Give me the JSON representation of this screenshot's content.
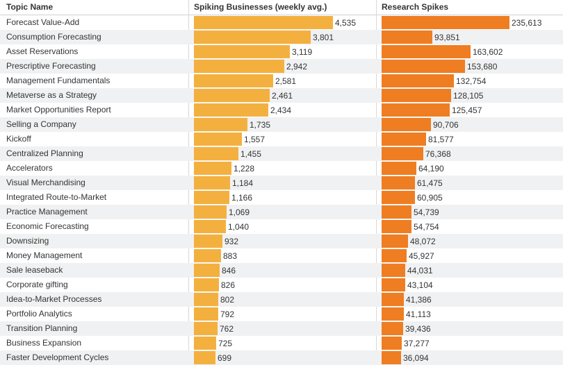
{
  "colors": {
    "businesses_bar": "#f4b03f",
    "research_bar": "#ef7d22",
    "alt_row": "#f0f1f2"
  },
  "header": {
    "topic": "Topic Name",
    "businesses": "Spiking Businesses (weekly avg.)",
    "research": "Research Spikes"
  },
  "chart_data": {
    "type": "bar",
    "title": "",
    "categories": [
      "Forecast Value-Add",
      "Consumption Forecasting",
      "Asset Reservations",
      "Prescriptive Forecasting",
      "Management Fundamentals",
      "Metaverse as a Strategy",
      "Market Opportunities Report",
      "Selling a Company",
      "Kickoff",
      "Centralized Planning",
      "Accelerators",
      "Visual Merchandising",
      "Integrated Route-to-Market",
      "Practice Management",
      "Economic Forecasting",
      "Downsizing",
      "Money Management",
      "Sale leaseback",
      "Corporate gifting",
      "Idea-to-Market Processes",
      "Portfolio Analytics",
      "Transition Planning",
      "Business Expansion",
      "Faster Development Cycles"
    ],
    "series": [
      {
        "name": "Spiking Businesses (weekly avg.)",
        "values": [
          4535,
          3801,
          3119,
          2942,
          2581,
          2461,
          2434,
          1735,
          1557,
          1455,
          1228,
          1184,
          1166,
          1069,
          1040,
          932,
          883,
          846,
          826,
          802,
          792,
          762,
          725,
          699
        ],
        "labels": [
          "4,535",
          "3,801",
          "3,119",
          "2,942",
          "2,581",
          "2,461",
          "2,434",
          "1,735",
          "1,557",
          "1,455",
          "1,228",
          "1,184",
          "1,166",
          "1,069",
          "1,040",
          "932",
          "883",
          "846",
          "826",
          "802",
          "792",
          "762",
          "725",
          "699"
        ]
      },
      {
        "name": "Research Spikes",
        "values": [
          235613,
          93851,
          163602,
          153680,
          132754,
          128105,
          125457,
          90706,
          81577,
          76368,
          64190,
          61475,
          60905,
          54739,
          54754,
          48072,
          45927,
          44031,
          43104,
          41386,
          41113,
          39436,
          37277,
          36094
        ],
        "labels": [
          "235,613",
          "93,851",
          "163,602",
          "153,680",
          "132,754",
          "128,105",
          "125,457",
          "90,706",
          "81,577",
          "76,368",
          "64,190",
          "61,475",
          "60,905",
          "54,739",
          "54,754",
          "48,072",
          "45,927",
          "44,031",
          "43,104",
          "41,386",
          "41,113",
          "39,436",
          "37,277",
          "36,094"
        ]
      }
    ],
    "xlim_businesses": [
      0,
      4535
    ],
    "xlim_research": [
      0,
      235613
    ],
    "grid": false,
    "legend": "none"
  }
}
